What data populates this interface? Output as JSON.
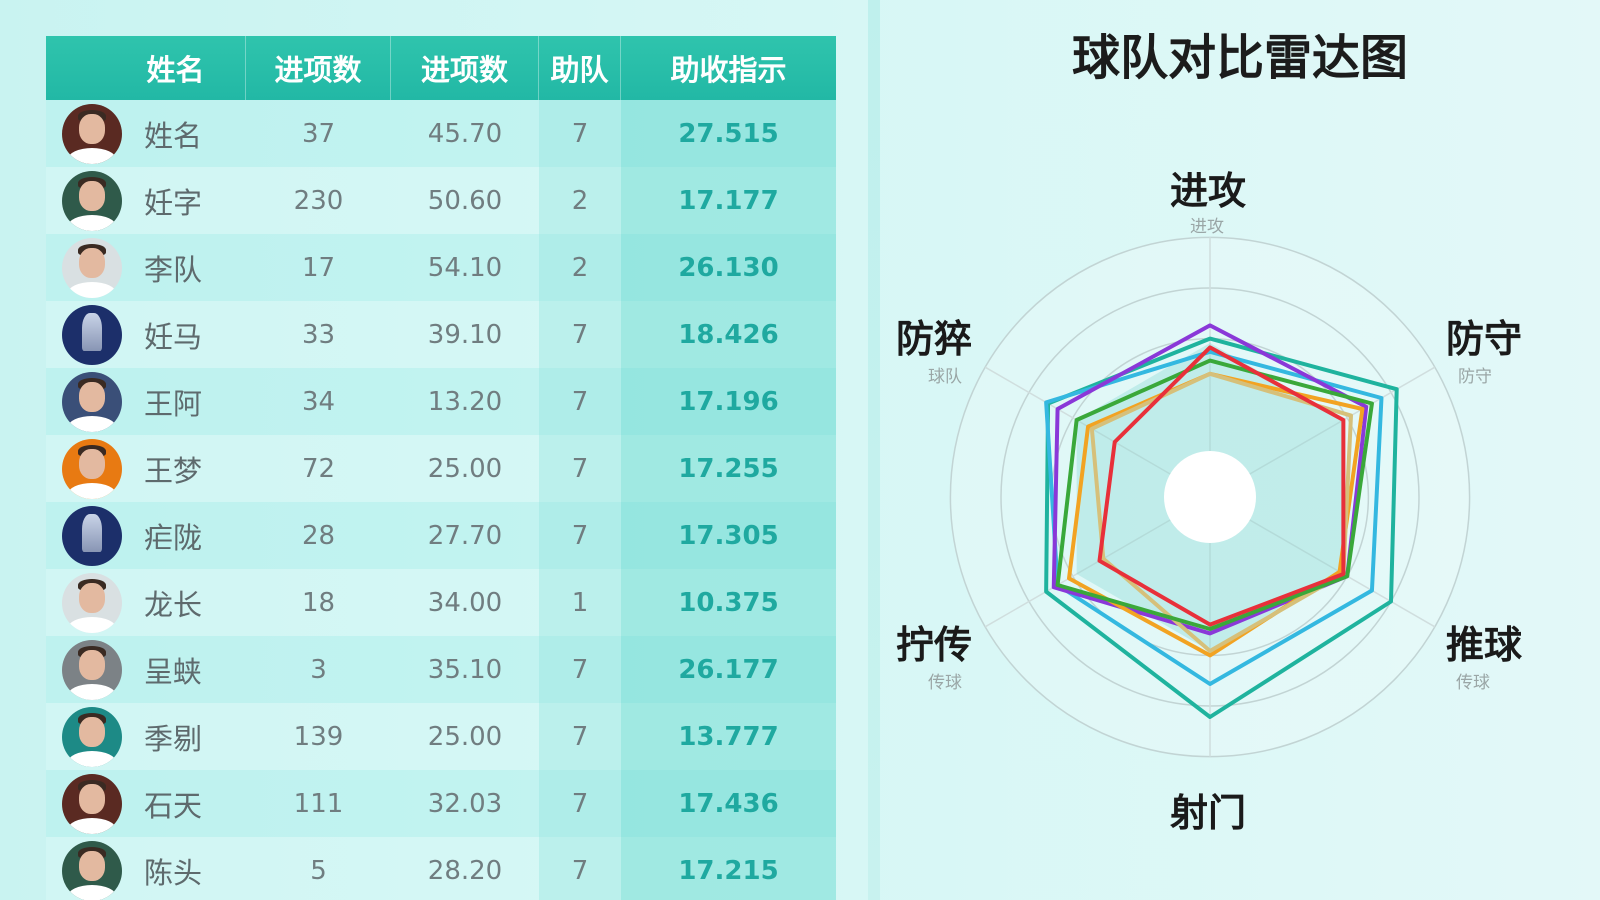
{
  "table": {
    "headers": [
      "姓名",
      "进项数",
      "进项数",
      "助队",
      "助收指示"
    ],
    "rows": [
      {
        "name": "姓名",
        "a": "37",
        "b": "45.70",
        "c": "7",
        "d": "27.515",
        "avatar": "dark"
      },
      {
        "name": "妊字",
        "a": "230",
        "b": "50.60",
        "c": "2",
        "d": "17.177",
        "avatar": "green"
      },
      {
        "name": "李队",
        "a": "17",
        "b": "54.10",
        "c": "2",
        "d": "26.130",
        "avatar": "white"
      },
      {
        "name": "妊马",
        "a": "33",
        "b": "39.10",
        "c": "7",
        "d": "18.426",
        "avatar": "badge"
      },
      {
        "name": "王阿",
        "a": "34",
        "b": "13.20",
        "c": "7",
        "d": "17.196",
        "avatar": "navy"
      },
      {
        "name": "王梦",
        "a": "72",
        "b": "25.00",
        "c": "7",
        "d": "17.255",
        "avatar": "orange"
      },
      {
        "name": "疟陇",
        "a": "28",
        "b": "27.70",
        "c": "7",
        "d": "17.305",
        "avatar": "badge"
      },
      {
        "name": "龙长",
        "a": "18",
        "b": "34.00",
        "c": "1",
        "d": "10.375",
        "avatar": "white"
      },
      {
        "name": "呈蛱",
        "a": "3",
        "b": "35.10",
        "c": "7",
        "d": "26.177",
        "avatar": "gray"
      },
      {
        "name": "季剔",
        "a": "139",
        "b": "25.00",
        "c": "7",
        "d": "13.777",
        "avatar": "teal"
      },
      {
        "name": "石天",
        "a": "111",
        "b": "32.03",
        "c": "7",
        "d": "17.436",
        "avatar": "dark"
      },
      {
        "name": "陈头",
        "a": "5",
        "b": "28.20",
        "c": "7",
        "d": "17.215",
        "avatar": "green"
      }
    ]
  },
  "radar": {
    "title": "球队对比雷达图",
    "axes": [
      {
        "label": "进攻",
        "sub": "进攻"
      },
      {
        "label": "防守",
        "sub": "防守"
      },
      {
        "label": "推球",
        "sub": "传球"
      },
      {
        "label": "射门",
        "sub": ""
      },
      {
        "label": "拧传",
        "sub": "传球"
      },
      {
        "label": "防猝",
        "sub": "球队"
      }
    ],
    "colors": {
      "teal": "#1fb39e",
      "cyan": "#34b8e0",
      "purple": "#8a38d8",
      "red": "#e8303a",
      "green": "#3aa83a",
      "orange": "#f2a322",
      "tan": "#d6c07a",
      "pink": "#e4a0b8"
    }
  },
  "chart_data": {
    "type": "radar",
    "title": "球队对比雷达图",
    "categories": [
      "进攻",
      "防守",
      "推球",
      "射门",
      "拧传",
      "防猝"
    ],
    "series": [
      {
        "values": [
          0.72,
          0.98,
          0.95,
          1.0,
          0.86,
          0.85
        ],
        "color": "#1fb39e"
      },
      {
        "values": [
          0.66,
          0.9,
          0.85,
          0.85,
          0.8,
          0.86
        ],
        "color": "#34b8e0"
      },
      {
        "values": [
          0.78,
          0.82,
          0.72,
          0.62,
          0.82,
          0.8
        ],
        "color": "#8a38d8"
      },
      {
        "values": [
          0.56,
          0.8,
          0.68,
          0.72,
          0.74,
          0.64
        ],
        "color": "#f2a322"
      },
      {
        "values": [
          0.56,
          0.74,
          0.7,
          0.7,
          0.56,
          0.62
        ],
        "color": "#d6c07a"
      },
      {
        "values": [
          0.62,
          0.85,
          0.72,
          0.6,
          0.8,
          0.7
        ],
        "color": "#3aa83a"
      },
      {
        "values": [
          0.68,
          0.7,
          0.7,
          0.58,
          0.58,
          0.5
        ],
        "color": "#e8303a"
      }
    ],
    "grid": true
  }
}
